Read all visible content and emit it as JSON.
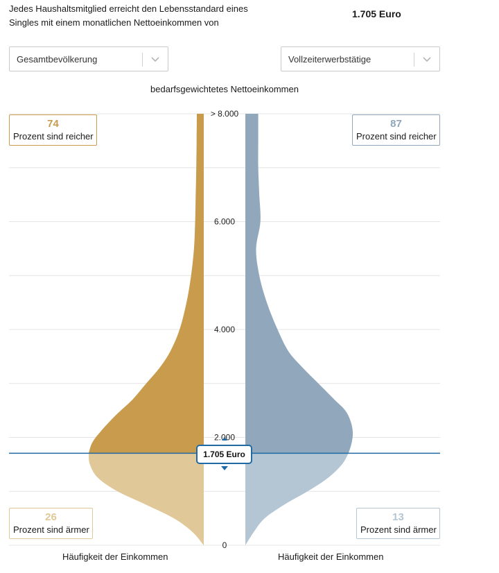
{
  "intro": {
    "line1": "Jedes Haushaltsmitglied erreicht den Lebensstandard eines",
    "line2": "Singles mit einem monatlichen Nettoeinkommen von",
    "amount": "1.705 Euro"
  },
  "selects": {
    "left": {
      "value": "Gesamtbevölkerung",
      "icon": "chevron-down-icon"
    },
    "right": {
      "value": "Vollzeiterwerbstätige",
      "icon": "chevron-down-icon"
    }
  },
  "chart_data": {
    "type": "area",
    "title": "bedarfsgewichtetes Nettoeinkommen",
    "ylim": [
      0,
      8000
    ],
    "yticks": [
      {
        "value": 0,
        "label": "0"
      },
      {
        "value": 2000,
        "label": "2.000"
      },
      {
        "value": 4000,
        "label": "4.000"
      },
      {
        "value": 6000,
        "label": "6.000"
      },
      {
        "value": 8000,
        "label": "> 8.000"
      }
    ],
    "gridlines": [
      0,
      1000,
      2000,
      3000,
      4000,
      5000,
      6000,
      7000,
      8000
    ],
    "threshold": {
      "value": 1705,
      "label": "1.705 Euro",
      "color": "#1f6aa5"
    },
    "xlabel_left": "Häufigkeit der Einkommen",
    "xlabel_right": "Häufigkeit der Einkommen",
    "series": [
      {
        "name": "Gesamtbevölkerung",
        "side": "left",
        "color_above": "#c89c4c",
        "color_below": "#e0c898",
        "percent_richer": "74",
        "percent_poorer": "26",
        "income": [
          0,
          250,
          500,
          750,
          1000,
          1250,
          1500,
          1705,
          1900,
          2100,
          2400,
          2700,
          3000,
          3300,
          3600,
          4000,
          4500,
          5000,
          5500,
          6000,
          6500,
          7000,
          7500,
          8000
        ],
        "density": [
          0.0,
          0.1,
          0.26,
          0.5,
          0.75,
          0.92,
          0.99,
          1.0,
          0.97,
          0.9,
          0.77,
          0.62,
          0.5,
          0.38,
          0.29,
          0.21,
          0.15,
          0.11,
          0.085,
          0.075,
          0.07,
          0.065,
          0.062,
          0.06
        ]
      },
      {
        "name": "Vollzeiterwerbstätige",
        "side": "right",
        "color_above": "#91a8bc",
        "color_below": "#b4c5d3",
        "percent_richer": "87",
        "percent_poorer": "13",
        "income": [
          0,
          250,
          500,
          750,
          1000,
          1250,
          1500,
          1705,
          1900,
          2100,
          2300,
          2500,
          2700,
          3000,
          3300,
          3600,
          4000,
          4500,
          5000,
          5500,
          6000,
          6500,
          7000,
          7500,
          8000
        ],
        "density": [
          0.0,
          0.08,
          0.18,
          0.36,
          0.58,
          0.77,
          0.9,
          0.96,
          0.99,
          1.0,
          0.98,
          0.93,
          0.83,
          0.68,
          0.53,
          0.4,
          0.3,
          0.2,
          0.13,
          0.1,
          0.14,
          0.13,
          0.12,
          0.12,
          0.12
        ]
      }
    ]
  }
}
